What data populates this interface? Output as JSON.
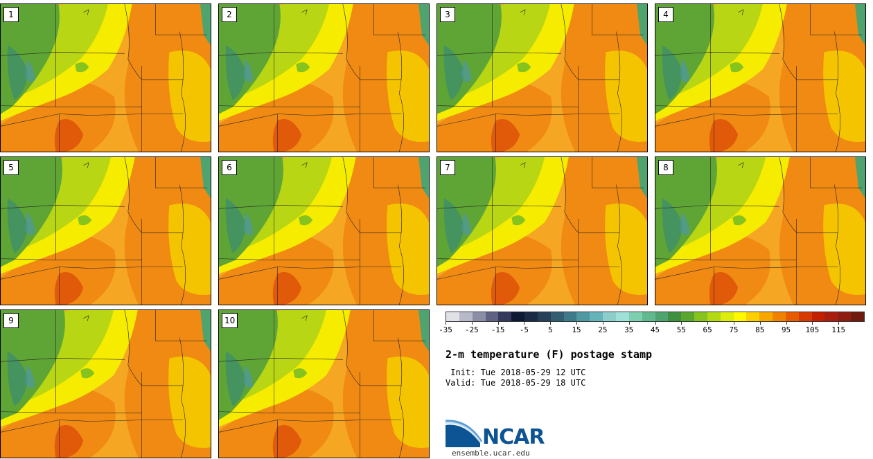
{
  "panels": [
    {
      "label": "1"
    },
    {
      "label": "2"
    },
    {
      "label": "3"
    },
    {
      "label": "4"
    },
    {
      "label": "5"
    },
    {
      "label": "6"
    },
    {
      "label": "7"
    },
    {
      "label": "8"
    },
    {
      "label": "9"
    },
    {
      "label": "10"
    }
  ],
  "colorbar": {
    "colors": [
      "#e1e1e8",
      "#b7b8c8",
      "#8c8ea5",
      "#5f6282",
      "#35395c",
      "#0e1a33",
      "#1b2a45",
      "#26405a",
      "#335d73",
      "#3f7a8a",
      "#4f97a2",
      "#66b3b9",
      "#8ccecc",
      "#9fe0d8",
      "#7dcfb0",
      "#62b98f",
      "#4ea36e",
      "#3f8f41",
      "#5aa62e",
      "#86c31f",
      "#b2d912",
      "#dcec0c",
      "#fff800",
      "#fad000",
      "#f7a800",
      "#f08200",
      "#e65a00",
      "#d63a00",
      "#c22000",
      "#a81f10",
      "#8e1d12",
      "#6e1a0e"
    ],
    "tick_labels": [
      "-35",
      "-25",
      "-15",
      "-5",
      "5",
      "15",
      "25",
      "35",
      "45",
      "55",
      "65",
      "75",
      "85",
      "95",
      "105",
      "115"
    ]
  },
  "title": "2-m temperature (F) postage stamp",
  "init": " Init: Tue 2018-05-29 12 UTC",
  "valid": "Valid: Tue 2018-05-29 18 UTC",
  "logo": {
    "wordmark": "NCAR",
    "url": "ensemble.ucar.edu"
  }
}
